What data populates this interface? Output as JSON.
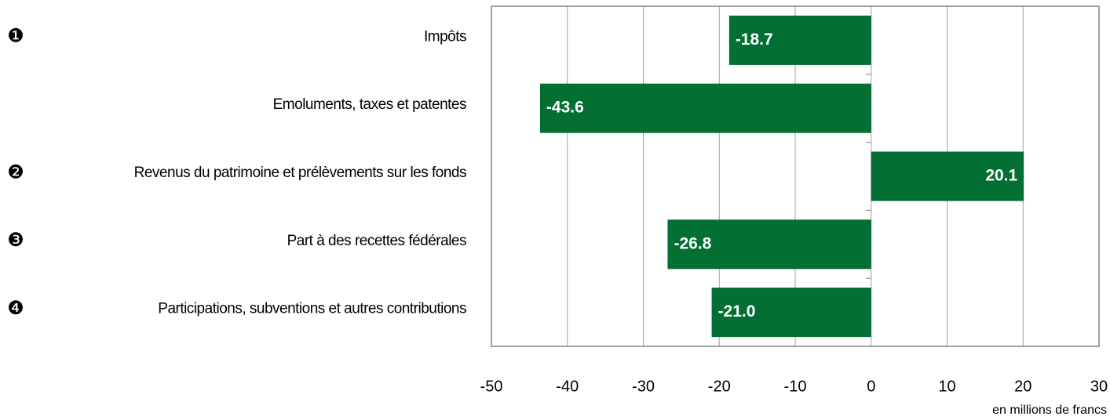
{
  "chart_data": {
    "type": "hbar",
    "categories": [
      "Impôts",
      "Emoluments, taxes et patentes",
      "Revenus du patrimoine et prélèvements sur les fonds",
      "Part à des recettes fédérales",
      "Participations, subventions et autres contributions"
    ],
    "markers": [
      "❶",
      null,
      "❷",
      "❸",
      "❹"
    ],
    "values": [
      -18.7,
      -43.6,
      20.1,
      -26.8,
      -21.0
    ],
    "value_labels": [
      "-18.7",
      "-43.6",
      "20.1",
      "-26.8",
      "-21.0"
    ],
    "color": "#036f32",
    "xlim": [
      -50,
      30
    ],
    "xticks": [
      -50,
      -40,
      -30,
      -20,
      -10,
      0,
      10,
      20,
      30
    ],
    "x_label": "en millions de francs",
    "grid": true
  }
}
